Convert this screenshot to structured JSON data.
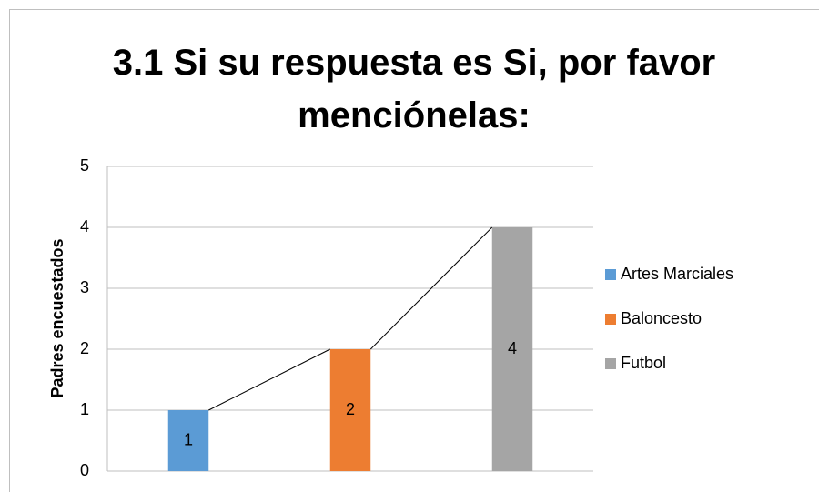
{
  "chart_data": {
    "type": "bar",
    "title": "3.1 Si su respuesta es Si, por favor menciónelas:",
    "y_label": "Padres encuestados",
    "categories": [
      null,
      null,
      null
    ],
    "series": [
      {
        "name": "Artes Marciales",
        "color": "#5b9bd5",
        "values": [
          1,
          null,
          null
        ]
      },
      {
        "name": "Baloncesto",
        "color": "#ed7d31",
        "values": [
          null,
          2,
          null
        ]
      },
      {
        "name": "Futbol",
        "color": "#a5a5a5",
        "values": [
          null,
          null,
          4
        ]
      }
    ],
    "ylim": [
      0,
      5
    ],
    "yticks": [
      0,
      1,
      2,
      3,
      4,
      5
    ],
    "grid": true,
    "legend": "right",
    "series_lines": true
  }
}
